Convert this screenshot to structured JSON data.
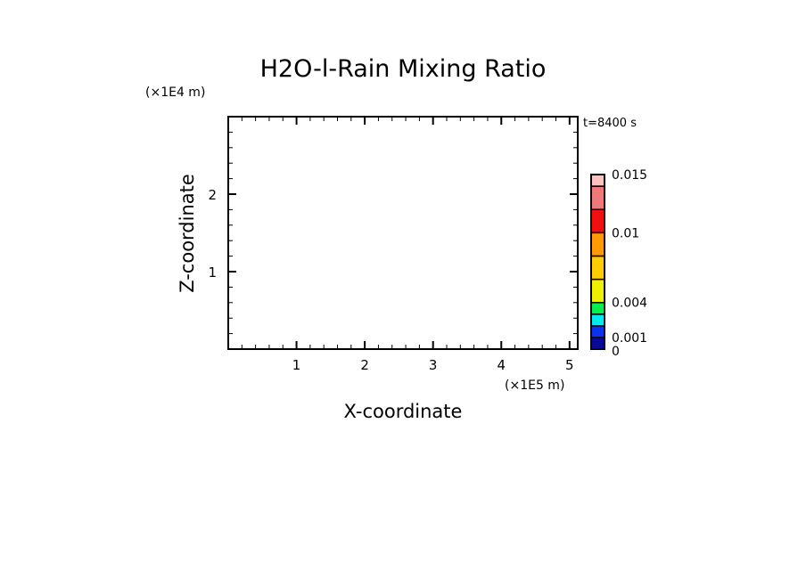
{
  "chart_data": {
    "type": "heatmap",
    "title": "H2O-l-Rain Mixing Ratio",
    "xlabel": "X-coordinate",
    "ylabel": "Z-coordinate",
    "x_unit": "(×1E5 m)",
    "y_unit": "(×1E4 m)",
    "annotation": "t=8400 s",
    "xlim": [
      0,
      5.12
    ],
    "ylim": [
      0,
      3
    ],
    "x_ticks": [
      "1",
      "2",
      "3",
      "4",
      "5"
    ],
    "y_ticks": [
      "1",
      "2"
    ],
    "x_minor_step": 0.2,
    "y_minor_step": 0.2,
    "grid": false,
    "data": [],
    "colorbar": {
      "levels": [
        0,
        0.001,
        0.002,
        0.003,
        0.004,
        0.006,
        0.008,
        0.01,
        0.012,
        0.014,
        0.015
      ],
      "colors": [
        "#0a0a9a",
        "#0a32f0",
        "#00eaf0",
        "#00f050",
        "#eef000",
        "#ffcc00",
        "#ff9a00",
        "#f01010",
        "#f07878",
        "#ffc0c0"
      ],
      "tick_labels": [
        {
          "value": 0,
          "label": "0"
        },
        {
          "value": 0.001,
          "label": "0.001"
        },
        {
          "value": 0.004,
          "label": "0.004"
        },
        {
          "value": 0.01,
          "label": "0.01"
        },
        {
          "value": 0.015,
          "label": "0.015"
        }
      ]
    }
  }
}
